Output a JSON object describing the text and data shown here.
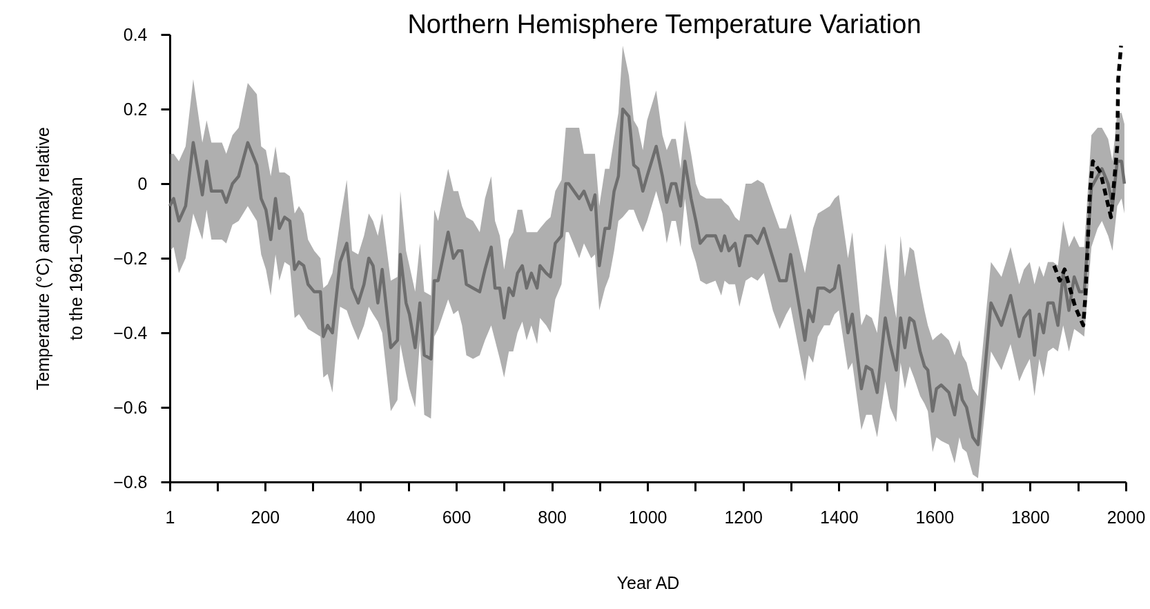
{
  "chart_data": {
    "type": "line",
    "title": "Northern Hemisphere Temperature Variation",
    "xlabel": "Year AD",
    "ylabel": [
      "Temperature (°C) anomaly relative",
      "to the 1961–90 mean"
    ],
    "xlim": [
      1,
      2000
    ],
    "ylim": [
      -0.8,
      0.4
    ],
    "xticks": [
      1,
      {
        "value": 100,
        "label": null
      },
      200,
      {
        "value": 300,
        "label": null
      },
      400,
      {
        "value": 500,
        "label": null
      },
      600,
      {
        "value": 700,
        "label": null
      },
      800,
      {
        "value": 900,
        "label": null
      },
      1000,
      {
        "value": 1100,
        "label": null
      },
      1200,
      {
        "value": 1300,
        "label": null
      },
      1400,
      {
        "value": 1500,
        "label": null
      },
      1600,
      {
        "value": 1700,
        "label": null
      },
      1800,
      {
        "value": 1900,
        "label": null
      },
      2000
    ],
    "yticks": [
      0.4,
      0.2,
      0,
      {
        "value": -0.2,
        "label": "−0.2"
      },
      {
        "value": -0.4,
        "label": "−0.4"
      },
      {
        "value": -0.6,
        "label": "−0.6"
      },
      {
        "value": -0.8,
        "label": "−0.8"
      }
    ],
    "grid": false,
    "series": [
      {
        "color": "#6e6e6e",
        "line_style": "solid",
        "x": [
          1,
          9,
          20,
          34,
          50,
          69,
          78,
          88,
          110,
          119,
          132,
          145,
          164,
          183,
          192,
          202,
          212,
          222,
          230,
          241,
          252,
          262,
          271,
          281,
          290,
          303,
          316,
          322,
          331,
          341,
          357,
          371,
          382,
          395,
          407,
          417,
          426,
          436,
          445,
          463,
          477,
          483,
          495,
          502,
          514,
          524,
          533,
          547,
          554,
          562,
          583,
          594,
          604,
          612,
          621,
          635,
          649,
          660,
          673,
          681,
          691,
          700,
          710,
          719,
          728,
          738,
          747,
          757,
          769,
          775,
          788,
          797,
          807,
          820,
          829,
          835,
          857,
          867,
          882,
          890,
          899,
          911,
          920,
          930,
          939,
          948,
          961,
          971,
          980,
          990,
          999,
          1018,
          1031,
          1040,
          1050,
          1059,
          1069,
          1078,
          1091,
          1101,
          1110,
          1123,
          1142,
          1154,
          1161,
          1170,
          1183,
          1192,
          1205,
          1217,
          1230,
          1243,
          1262,
          1276,
          1290,
          1299,
          1329,
          1337,
          1346,
          1356,
          1369,
          1381,
          1391,
          1400,
          1419,
          1428,
          1447,
          1457,
          1469,
          1480,
          1497,
          1507,
          1520,
          1529,
          1538,
          1548,
          1557,
          1570,
          1579,
          1586,
          1596,
          1604,
          1614,
          1630,
          1642,
          1652,
          1658,
          1667,
          1680,
          1691,
          1718,
          1740,
          1759,
          1777,
          1787,
          1799,
          1809,
          1819,
          1828,
          1837,
          1848,
          1858,
          1869,
          1881,
          1892,
          1903,
          1913,
          1928,
          1941,
          1950,
          1963,
          1972,
          1982,
          1991,
          1997
        ],
        "values": [
          -0.06,
          -0.04,
          -0.1,
          -0.06,
          0.11,
          -0.03,
          0.06,
          -0.02,
          -0.02,
          -0.05,
          0,
          0.02,
          0.11,
          0.05,
          -0.04,
          -0.07,
          -0.15,
          -0.04,
          -0.12,
          -0.09,
          -0.1,
          -0.23,
          -0.21,
          -0.22,
          -0.27,
          -0.29,
          -0.29,
          -0.41,
          -0.38,
          -0.4,
          -0.21,
          -0.16,
          -0.28,
          -0.32,
          -0.27,
          -0.2,
          -0.22,
          -0.32,
          -0.23,
          -0.44,
          -0.42,
          -0.19,
          -0.32,
          -0.35,
          -0.44,
          -0.32,
          -0.46,
          -0.47,
          -0.26,
          -0.26,
          -0.13,
          -0.2,
          -0.18,
          -0.18,
          -0.27,
          -0.28,
          -0.29,
          -0.23,
          -0.17,
          -0.28,
          -0.28,
          -0.36,
          -0.28,
          -0.3,
          -0.24,
          -0.22,
          -0.28,
          -0.24,
          -0.28,
          -0.22,
          -0.24,
          -0.25,
          -0.16,
          -0.14,
          0,
          0,
          -0.04,
          -0.02,
          -0.07,
          -0.03,
          -0.22,
          -0.12,
          -0.12,
          -0.02,
          0.02,
          0.2,
          0.18,
          0.05,
          0.04,
          -0.02,
          0.02,
          0.1,
          0.02,
          -0.05,
          0,
          0,
          -0.06,
          0.06,
          -0.04,
          -0.1,
          -0.16,
          -0.14,
          -0.14,
          -0.18,
          -0.14,
          -0.18,
          -0.16,
          -0.22,
          -0.14,
          -0.14,
          -0.16,
          -0.12,
          -0.2,
          -0.26,
          -0.26,
          -0.19,
          -0.42,
          -0.34,
          -0.37,
          -0.28,
          -0.28,
          -0.29,
          -0.28,
          -0.22,
          -0.4,
          -0.35,
          -0.55,
          -0.49,
          -0.5,
          -0.56,
          -0.36,
          -0.43,
          -0.5,
          -0.36,
          -0.44,
          -0.36,
          -0.37,
          -0.45,
          -0.49,
          -0.5,
          -0.61,
          -0.55,
          -0.54,
          -0.56,
          -0.62,
          -0.54,
          -0.58,
          -0.6,
          -0.68,
          -0.7,
          -0.32,
          -0.38,
          -0.3,
          -0.41,
          -0.36,
          -0.34,
          -0.46,
          -0.35,
          -0.4,
          -0.32,
          -0.32,
          -0.38,
          -0.24,
          -0.34,
          -0.25,
          -0.29,
          -0.29,
          -0.01,
          0.02,
          0.04,
          0,
          -0.06,
          0.06,
          0.06,
          0
        ],
        "lower": [
          -0.18,
          -0.17,
          -0.24,
          -0.2,
          -0.08,
          -0.15,
          -0.07,
          -0.15,
          -0.15,
          -0.16,
          -0.11,
          -0.1,
          -0.06,
          -0.1,
          -0.19,
          -0.23,
          -0.3,
          -0.19,
          -0.26,
          -0.21,
          -0.22,
          -0.36,
          -0.35,
          -0.37,
          -0.39,
          -0.4,
          -0.41,
          -0.52,
          -0.51,
          -0.56,
          -0.33,
          -0.34,
          -0.38,
          -0.42,
          -0.38,
          -0.33,
          -0.35,
          -0.37,
          -0.4,
          -0.61,
          -0.58,
          -0.43,
          -0.51,
          -0.55,
          -0.6,
          -0.42,
          -0.62,
          -0.63,
          -0.41,
          -0.39,
          -0.31,
          -0.35,
          -0.34,
          -0.38,
          -0.46,
          -0.47,
          -0.46,
          -0.42,
          -0.38,
          -0.42,
          -0.47,
          -0.52,
          -0.45,
          -0.45,
          -0.4,
          -0.37,
          -0.42,
          -0.38,
          -0.43,
          -0.36,
          -0.38,
          -0.4,
          -0.31,
          -0.27,
          -0.13,
          -0.13,
          -0.2,
          -0.16,
          -0.2,
          -0.19,
          -0.34,
          -0.28,
          -0.25,
          -0.18,
          -0.1,
          -0.09,
          -0.07,
          -0.07,
          -0.1,
          -0.13,
          -0.1,
          -0.02,
          -0.08,
          -0.16,
          -0.1,
          -0.1,
          -0.17,
          -0.04,
          -0.17,
          -0.21,
          -0.26,
          -0.27,
          -0.26,
          -0.3,
          -0.26,
          -0.27,
          -0.27,
          -0.33,
          -0.26,
          -0.25,
          -0.26,
          -0.24,
          -0.34,
          -0.39,
          -0.35,
          -0.33,
          -0.53,
          -0.46,
          -0.48,
          -0.41,
          -0.38,
          -0.38,
          -0.35,
          -0.34,
          -0.5,
          -0.48,
          -0.66,
          -0.62,
          -0.62,
          -0.68,
          -0.53,
          -0.6,
          -0.64,
          -0.48,
          -0.55,
          -0.49,
          -0.52,
          -0.57,
          -0.59,
          -0.61,
          -0.72,
          -0.68,
          -0.69,
          -0.7,
          -0.75,
          -0.68,
          -0.71,
          -0.72,
          -0.78,
          -0.79,
          -0.45,
          -0.5,
          -0.43,
          -0.53,
          -0.5,
          -0.47,
          -0.57,
          -0.47,
          -0.52,
          -0.45,
          -0.44,
          -0.45,
          -0.38,
          -0.45,
          -0.39,
          -0.4,
          -0.41,
          -0.17,
          -0.12,
          -0.1,
          -0.14,
          -0.18,
          -0.06,
          -0.04,
          -0.08
        ],
        "upper": [
          0.08,
          0.08,
          0.06,
          0.1,
          0.28,
          0.11,
          0.17,
          0.11,
          0.11,
          0.08,
          0.13,
          0.15,
          0.27,
          0.24,
          0.1,
          0.09,
          0.02,
          0.1,
          0.03,
          0.03,
          0.02,
          -0.08,
          -0.06,
          -0.08,
          -0.15,
          -0.18,
          -0.2,
          -0.28,
          -0.27,
          -0.24,
          -0.1,
          0.01,
          -0.18,
          -0.19,
          -0.14,
          -0.08,
          -0.1,
          -0.14,
          -0.08,
          -0.26,
          -0.25,
          -0.02,
          -0.18,
          -0.22,
          -0.29,
          -0.16,
          -0.29,
          -0.3,
          -0.07,
          -0.1,
          0.04,
          -0.02,
          -0.02,
          -0.06,
          -0.09,
          -0.1,
          -0.13,
          -0.04,
          0.02,
          -0.1,
          -0.14,
          -0.23,
          -0.15,
          -0.13,
          -0.07,
          -0.07,
          -0.13,
          -0.13,
          -0.13,
          -0.12,
          -0.1,
          -0.09,
          -0.02,
          0.01,
          0.15,
          0.15,
          0.15,
          0.08,
          0.08,
          0.08,
          -0.06,
          0.04,
          0.04,
          0.12,
          0.19,
          0.37,
          0.29,
          0.17,
          0.15,
          0.09,
          0.17,
          0.25,
          0.13,
          0.09,
          0.12,
          0.12,
          0.04,
          0.17,
          0.08,
          0,
          -0.03,
          -0.04,
          -0.04,
          -0.04,
          -0.05,
          -0.06,
          -0.09,
          -0.1,
          0,
          0,
          0.01,
          0,
          -0.07,
          -0.12,
          -0.12,
          -0.08,
          -0.24,
          -0.18,
          -0.12,
          -0.08,
          -0.07,
          -0.06,
          -0.04,
          -0.03,
          -0.2,
          -0.13,
          -0.38,
          -0.35,
          -0.36,
          -0.4,
          -0.16,
          -0.27,
          -0.36,
          -0.14,
          -0.25,
          -0.17,
          -0.18,
          -0.28,
          -0.34,
          -0.38,
          -0.42,
          -0.41,
          -0.4,
          -0.42,
          -0.46,
          -0.42,
          -0.46,
          -0.48,
          -0.55,
          -0.57,
          -0.21,
          -0.25,
          -0.17,
          -0.27,
          -0.23,
          -0.21,
          -0.27,
          -0.22,
          -0.25,
          -0.21,
          -0.21,
          -0.22,
          -0.1,
          -0.17,
          -0.14,
          -0.17,
          -0.17,
          0.13,
          0.15,
          0.15,
          0.12,
          0.06,
          0.19,
          0.19,
          0.16
        ]
      },
      {
        "color": "#000000",
        "line_style": "dashed",
        "x": [
          1850,
          1862,
          1872,
          1894,
          1911,
          1916,
          1925,
          1931,
          1947,
          1969,
          1982,
          1984,
          1990
        ],
        "values": [
          -0.22,
          -0.26,
          -0.23,
          -0.33,
          -0.38,
          -0.29,
          -0.02,
          0.06,
          0.03,
          -0.09,
          0.1,
          0.28,
          0.37
        ]
      }
    ]
  }
}
